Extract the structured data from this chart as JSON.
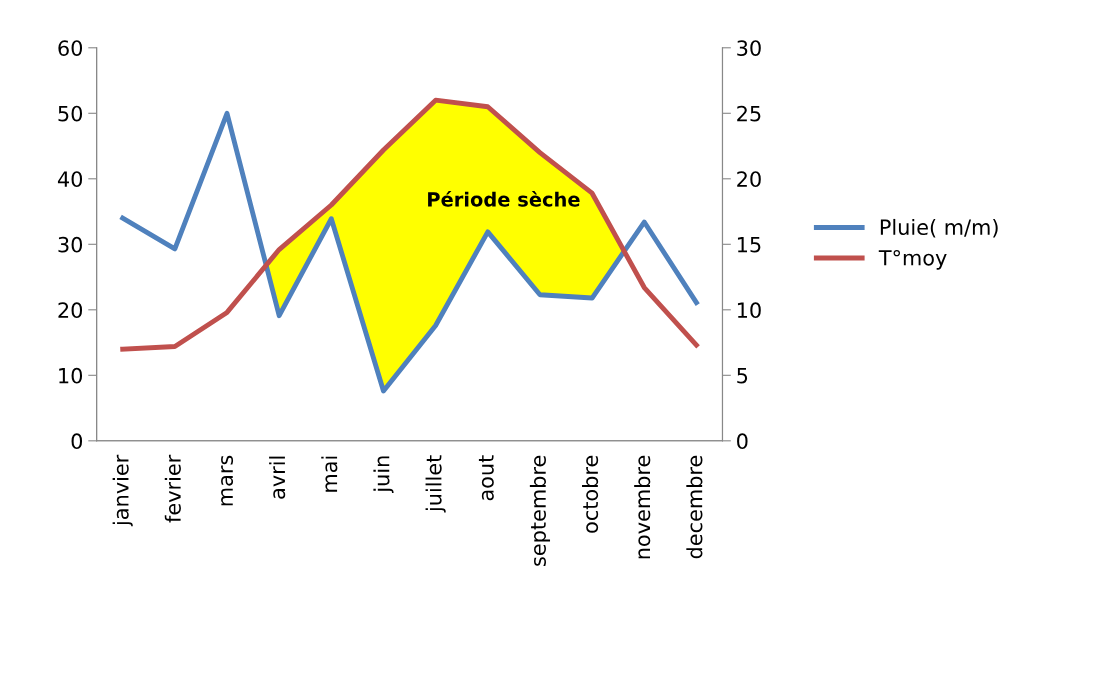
{
  "chart_data": {
    "type": "line",
    "categories": [
      "janvier",
      "fevrier",
      "mars",
      "avril",
      "mai",
      "juin",
      "juillet",
      "aout",
      "septembre",
      "octobre",
      "novembre",
      "decembre"
    ],
    "series": [
      {
        "name": "Pluie( m/m)",
        "color": "#4f81bd",
        "values": [
          34,
          29.3,
          50,
          19.1,
          33.9,
          7.6,
          17.6,
          31.9,
          22.3,
          21.8,
          33.4,
          21.1
        ]
      },
      {
        "name": "T°moy",
        "color": "#c0504d",
        "axis": "y2",
        "values": [
          7,
          7.2,
          9.8,
          14.6,
          18,
          22.2,
          26,
          25.5,
          22,
          18.9,
          11.7,
          7.3
        ]
      }
    ],
    "ylim": [
      0,
      60
    ],
    "yticks": [
      0,
      10,
      20,
      30,
      40,
      50,
      60
    ],
    "y2lim": [
      0,
      30
    ],
    "y2ticks": [
      0,
      5,
      10,
      15,
      20,
      25,
      30
    ],
    "annotations": [
      "Période sèche"
    ],
    "legend": "right",
    "grid": false,
    "marker": "none",
    "line_style": "solid"
  }
}
